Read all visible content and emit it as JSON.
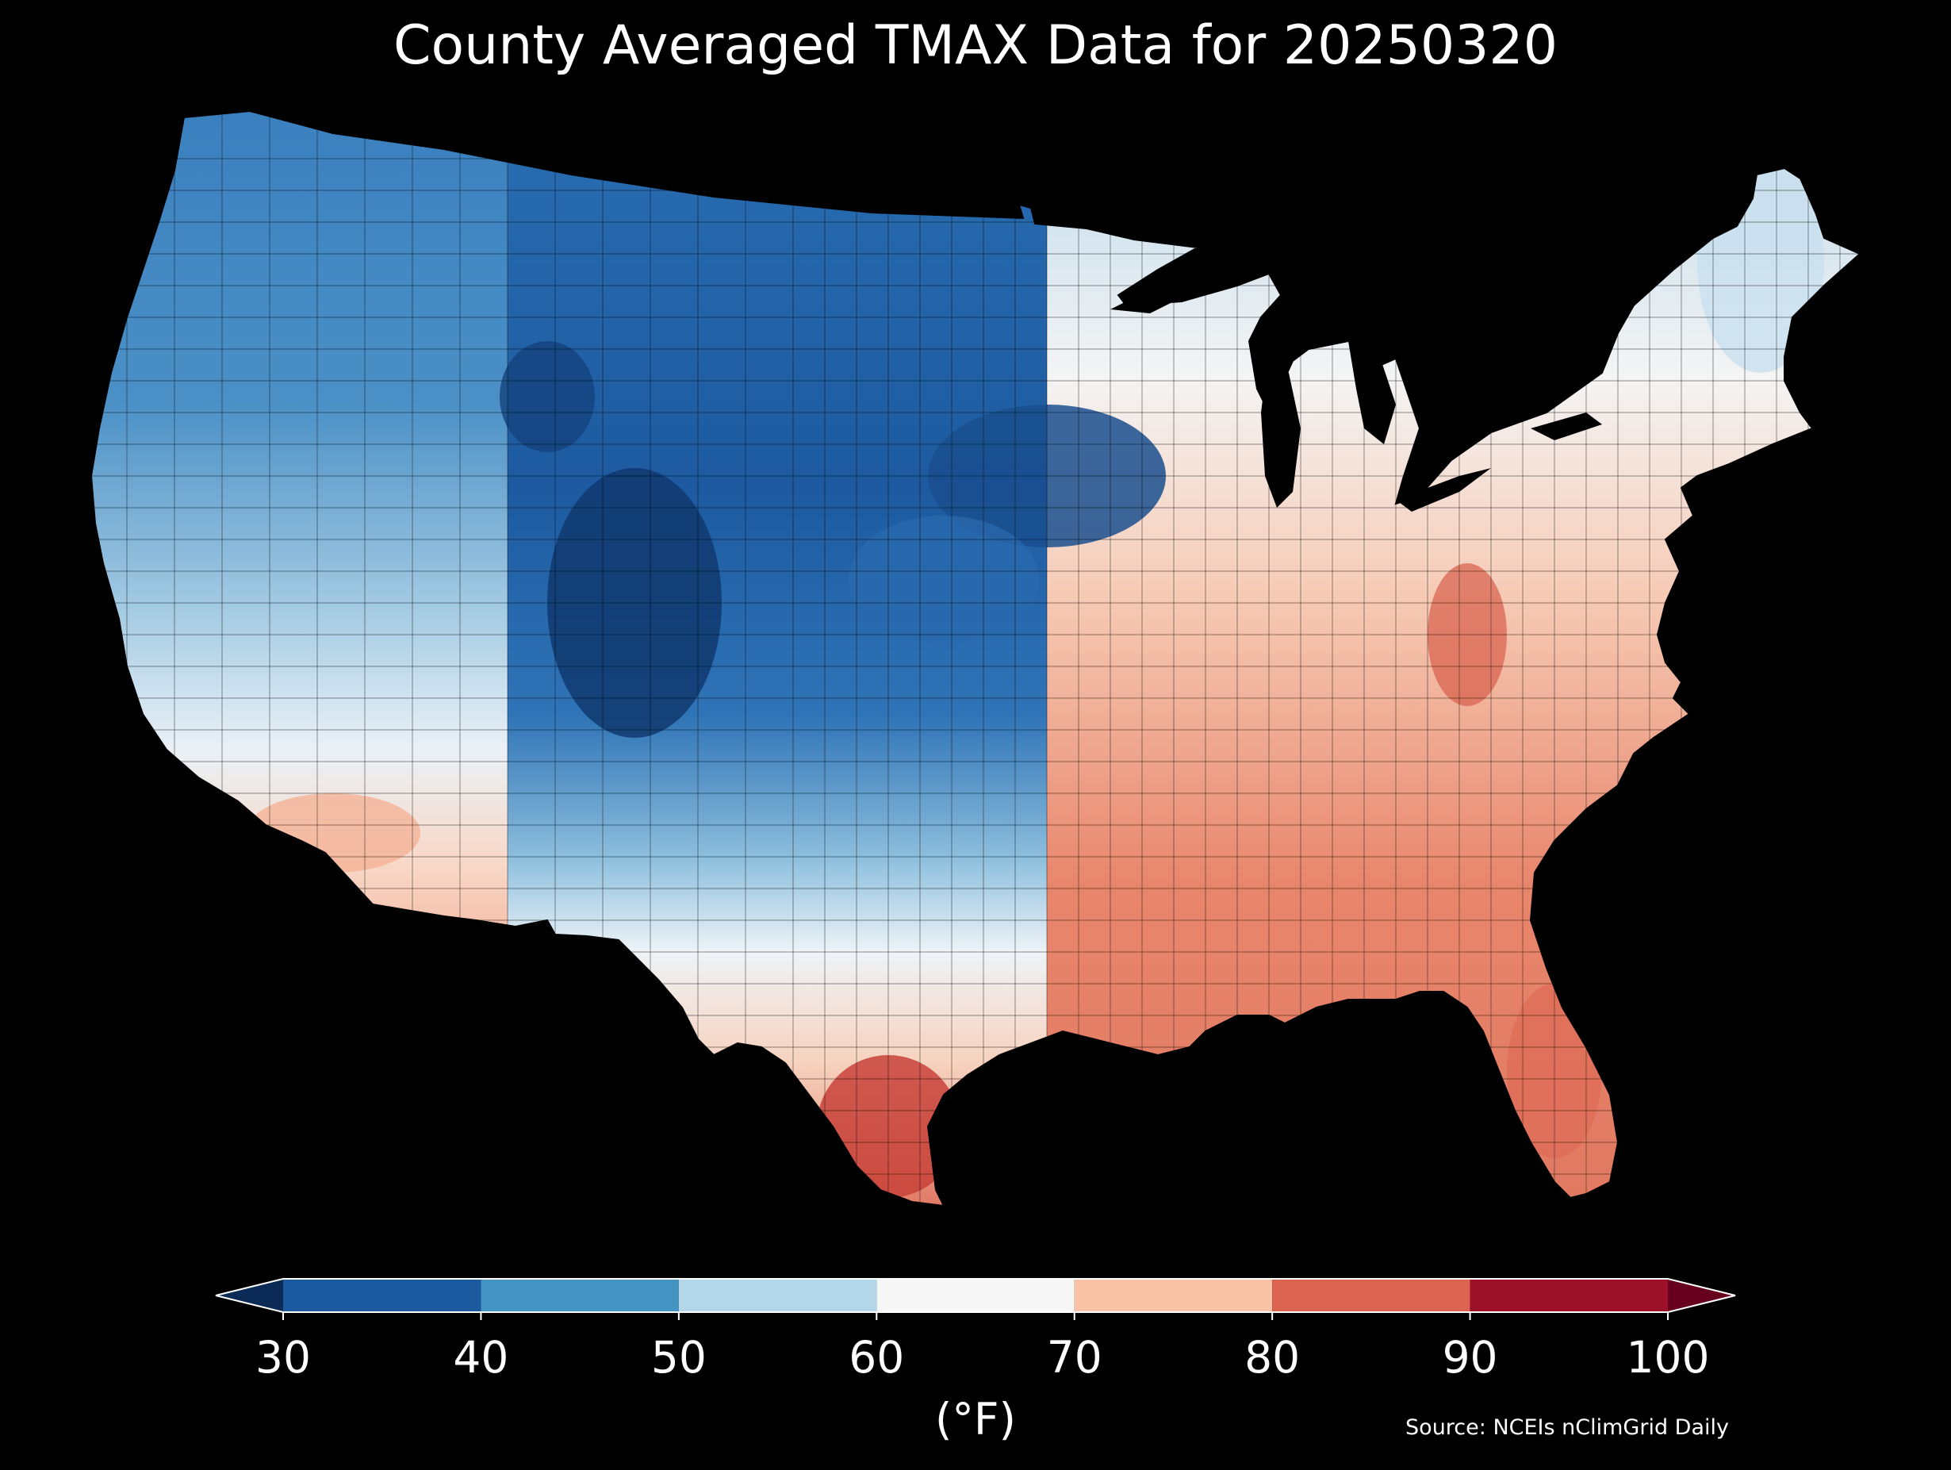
{
  "title": "County Averaged TMAX Data for 20250320",
  "legend": {
    "unit": "(°F)",
    "ticks": [
      "30",
      "40",
      "50",
      "60",
      "70",
      "80",
      "90",
      "100"
    ],
    "bins": [
      {
        "from": 30,
        "to": 40,
        "color": "#1c5aa0"
      },
      {
        "from": 40,
        "to": 50,
        "color": "#4393c3"
      },
      {
        "from": 50,
        "to": 60,
        "color": "#b4d6e9"
      },
      {
        "from": 60,
        "to": 70,
        "color": "#f7f7f7"
      },
      {
        "from": 70,
        "to": 80,
        "color": "#f9c2a7"
      },
      {
        "from": 80,
        "to": 90,
        "color": "#dc6450"
      },
      {
        "from": 90,
        "to": 100,
        "color": "#9c1127"
      }
    ],
    "under_color": "#0b2a55",
    "over_color": "#67001f",
    "extend": "both"
  },
  "source": "Source: NCEIs nClimGrid Daily",
  "map": {
    "region": "Contiguous United States",
    "level": "county",
    "variable": "TMAX",
    "background_color": "#000000",
    "water_color": "#000000"
  }
}
